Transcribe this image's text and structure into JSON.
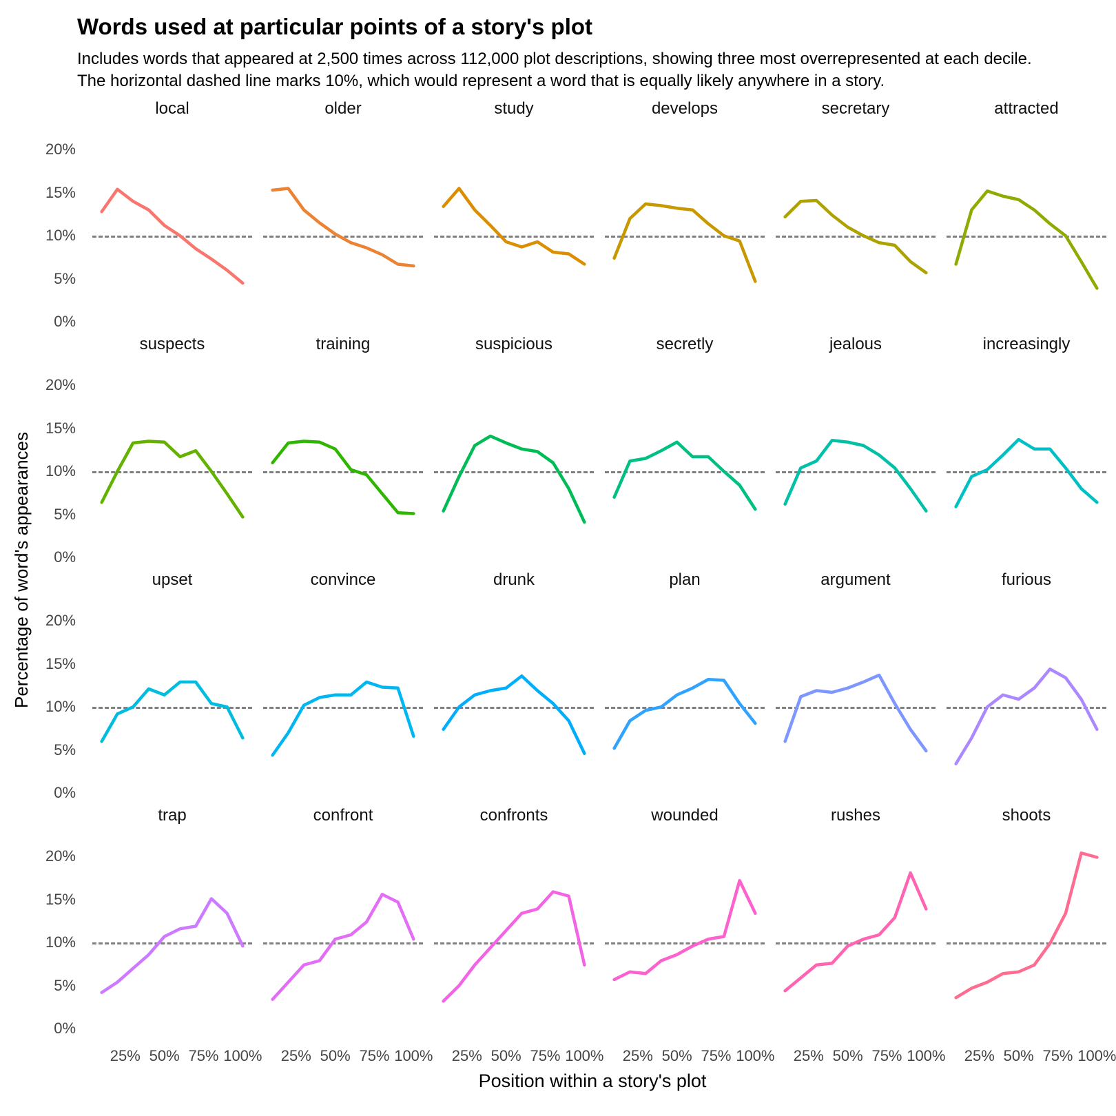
{
  "title": "Words used at particular points of a story's plot",
  "subtitle": "Includes words that appeared at 2,500 times across 112,000 plot descriptions, showing three most overrepresented at each decile.\nThe horizontal dashed line marks 10%, which would represent a word that is equally likely anywhere in a story.",
  "chart_data": {
    "type": "line",
    "layout": {
      "rows": 4,
      "cols": 6
    },
    "xlabel": "Position within a story's plot",
    "ylabel": "Percentage of word's appearances",
    "grid": false,
    "legend": "none",
    "ylim": [
      0,
      20
    ],
    "xlim": [
      10,
      100
    ],
    "reference_line": {
      "y": 10,
      "style": "dashed",
      "color": "#7f7f7f"
    },
    "x": [
      10,
      20,
      30,
      40,
      50,
      60,
      70,
      80,
      90,
      100
    ],
    "x_ticks": [
      {
        "v": 25,
        "label": "25%"
      },
      {
        "v": 50,
        "label": "50%"
      },
      {
        "v": 75,
        "label": "75%"
      },
      {
        "v": 100,
        "label": "100%"
      }
    ],
    "y_ticks": [
      {
        "v": 20,
        "label": "20%"
      },
      {
        "v": 15,
        "label": "15%"
      },
      {
        "v": 10,
        "label": "10%"
      },
      {
        "v": 5,
        "label": "5%"
      },
      {
        "v": 0,
        "label": "0%"
      }
    ],
    "facets": [
      {
        "title": "local",
        "color": "#F8766D",
        "values": [
          12.8,
          15.4,
          14.0,
          13.0,
          11.2,
          10.0,
          8.5,
          7.3,
          6.0,
          4.5
        ]
      },
      {
        "title": "older",
        "color": "#EB8335",
        "values": [
          15.3,
          15.5,
          13.0,
          11.5,
          10.2,
          9.2,
          8.6,
          7.8,
          6.7,
          6.5
        ]
      },
      {
        "title": "study",
        "color": "#DB8E00",
        "values": [
          13.4,
          15.5,
          13.0,
          11.2,
          9.3,
          8.7,
          9.3,
          8.1,
          7.9,
          6.7
        ]
      },
      {
        "title": "develops",
        "color": "#C79800",
        "values": [
          7.4,
          12.0,
          13.7,
          13.5,
          13.2,
          13.0,
          11.4,
          10.0,
          9.4,
          4.7
        ]
      },
      {
        "title": "secretary",
        "color": "#AEA200",
        "values": [
          12.2,
          14.0,
          14.1,
          12.4,
          11.0,
          10.0,
          9.2,
          8.9,
          7.0,
          5.7
        ]
      },
      {
        "title": "attracted",
        "color": "#8FAA00",
        "values": [
          6.7,
          13.0,
          15.2,
          14.6,
          14.2,
          13.0,
          11.4,
          10.0,
          7.0,
          3.9
        ]
      },
      {
        "title": "suspects",
        "color": "#64B200",
        "values": [
          6.4,
          10.0,
          13.3,
          13.5,
          13.4,
          11.7,
          12.4,
          10.0,
          7.4,
          4.7
        ]
      },
      {
        "title": "training",
        "color": "#2FB600",
        "values": [
          11.0,
          13.3,
          13.5,
          13.4,
          12.6,
          10.2,
          9.6,
          7.4,
          5.2,
          5.1
        ]
      },
      {
        "title": "suspicious",
        "color": "#00BC56",
        "values": [
          5.4,
          9.4,
          13.0,
          14.1,
          13.3,
          12.6,
          12.3,
          11.0,
          8.0,
          4.1
        ]
      },
      {
        "title": "secretly",
        "color": "#00BF83",
        "values": [
          7.0,
          11.2,
          11.5,
          12.4,
          13.4,
          11.7,
          11.7,
          10.0,
          8.4,
          5.6
        ]
      },
      {
        "title": "jealous",
        "color": "#00C1A7",
        "values": [
          6.2,
          10.4,
          11.2,
          13.6,
          13.4,
          13.0,
          11.9,
          10.4,
          8.0,
          5.4
        ]
      },
      {
        "title": "increasingly",
        "color": "#00C0C6",
        "values": [
          5.9,
          9.4,
          10.2,
          11.9,
          13.7,
          12.6,
          12.6,
          10.4,
          8.0,
          6.4
        ]
      },
      {
        "title": "upset",
        "color": "#00BDE0",
        "values": [
          6.0,
          9.2,
          10.0,
          12.1,
          11.4,
          12.9,
          12.9,
          10.4,
          10.0,
          6.4
        ]
      },
      {
        "title": "convince",
        "color": "#00B7F2",
        "values": [
          4.4,
          7.0,
          10.2,
          11.1,
          11.4,
          11.4,
          12.9,
          12.3,
          12.2,
          6.6
        ]
      },
      {
        "title": "drunk",
        "color": "#00AEFC",
        "values": [
          7.4,
          10.0,
          11.4,
          11.9,
          12.2,
          13.6,
          11.9,
          10.4,
          8.4,
          4.6
        ]
      },
      {
        "title": "plan",
        "color": "#30A2FF",
        "values": [
          5.2,
          8.4,
          9.6,
          10.0,
          11.4,
          12.2,
          13.2,
          13.1,
          10.4,
          8.1
        ]
      },
      {
        "title": "argument",
        "color": "#7E96FF",
        "values": [
          6.0,
          11.2,
          11.9,
          11.7,
          12.2,
          12.9,
          13.7,
          10.4,
          7.4,
          4.9
        ]
      },
      {
        "title": "furious",
        "color": "#AB88FF",
        "values": [
          3.4,
          6.4,
          10.0,
          11.4,
          10.9,
          12.2,
          14.4,
          13.4,
          10.9,
          7.4
        ]
      },
      {
        "title": "trap",
        "color": "#CC7AFF",
        "values": [
          4.2,
          5.4,
          7.0,
          8.6,
          10.7,
          11.6,
          11.9,
          15.1,
          13.4,
          9.6
        ]
      },
      {
        "title": "confront",
        "color": "#E36EF6",
        "values": [
          3.4,
          5.4,
          7.4,
          7.9,
          10.4,
          10.9,
          12.4,
          15.6,
          14.7,
          10.4
        ]
      },
      {
        "title": "confronts",
        "color": "#F264E4",
        "values": [
          3.2,
          5.0,
          7.4,
          9.4,
          11.4,
          13.4,
          13.9,
          15.9,
          15.4,
          7.4
        ]
      },
      {
        "title": "wounded",
        "color": "#FC61CD",
        "values": [
          5.7,
          6.6,
          6.4,
          7.9,
          8.6,
          9.6,
          10.4,
          10.7,
          17.2,
          13.4
        ]
      },
      {
        "title": "rushes",
        "color": "#FF63B2",
        "values": [
          4.4,
          5.9,
          7.4,
          7.6,
          9.6,
          10.4,
          10.9,
          12.9,
          18.1,
          13.9
        ]
      },
      {
        "title": "shoots",
        "color": "#FF6C92",
        "values": [
          3.6,
          4.7,
          5.4,
          6.4,
          6.6,
          7.4,
          9.9,
          13.4,
          20.4,
          19.9
        ]
      }
    ]
  }
}
